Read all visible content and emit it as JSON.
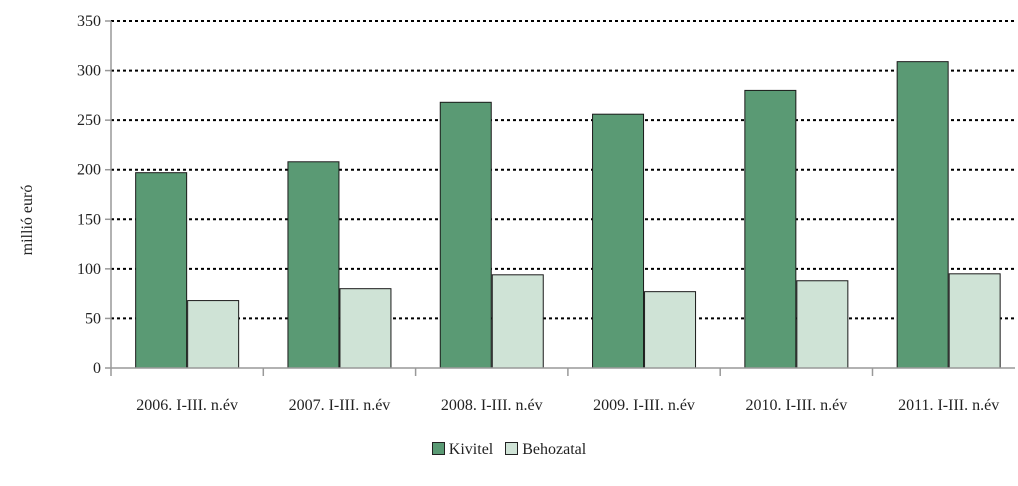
{
  "chart_data": {
    "type": "bar",
    "ylabel": "millió euró",
    "ylim": [
      0,
      350
    ],
    "yticks": [
      0,
      50,
      100,
      150,
      200,
      250,
      300,
      350
    ],
    "grid": true,
    "legend_position": "bottom",
    "categories": [
      "2006. I-III. n.év",
      "2007. I-III. n.év",
      "2008. I-III. n.év",
      "2009. I-III. n.év",
      "2010. I-III. n.év",
      "2011. I-III. n.év"
    ],
    "series": [
      {
        "name": "Kivitel",
        "color": "#5a9a74",
        "values": [
          197,
          208,
          268,
          256,
          280,
          309
        ]
      },
      {
        "name": "Behozatal",
        "color": "#cfe3d6",
        "values": [
          68,
          80,
          94,
          77,
          88,
          95
        ]
      }
    ]
  }
}
